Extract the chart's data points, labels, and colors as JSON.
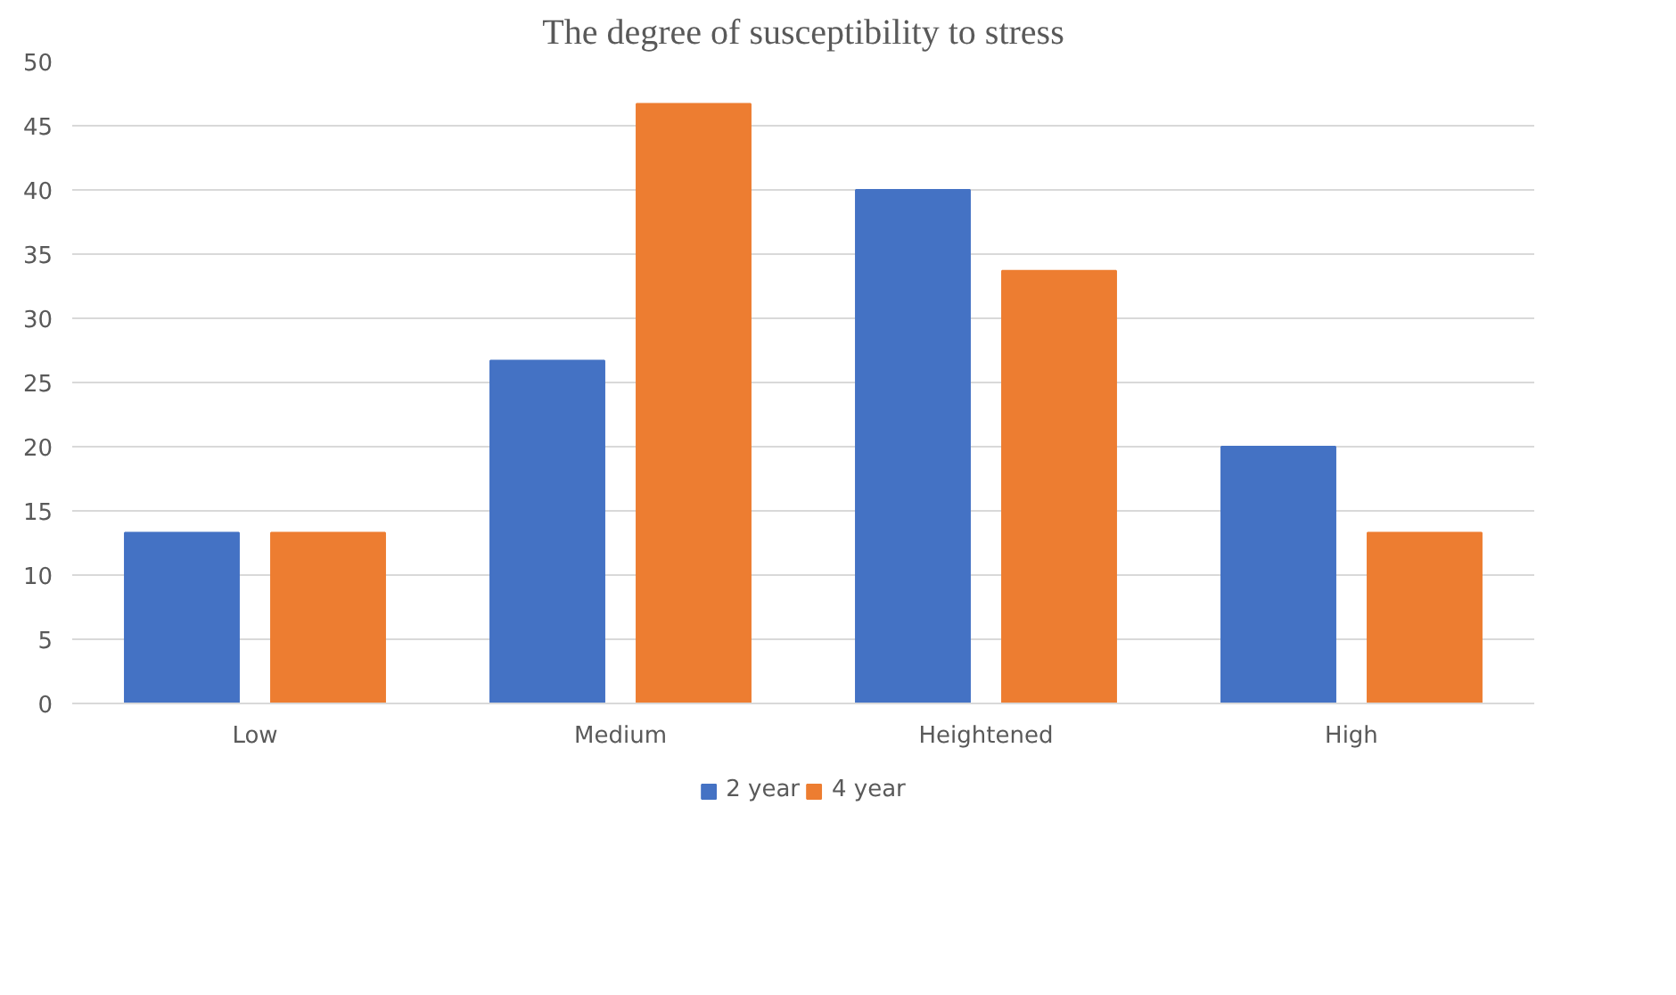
{
  "chart_data": {
    "type": "bar",
    "title": "The degree of susceptibility to stress",
    "categories": [
      "Low",
      "Medium",
      "Heightened",
      "High"
    ],
    "series": [
      {
        "name": "2 year",
        "color": "#4472c4",
        "values": [
          13.3,
          26.7,
          40,
          20
        ]
      },
      {
        "name": "4 year",
        "color": "#ed7d31",
        "values": [
          13.3,
          46.7,
          33.7,
          13.3
        ]
      }
    ],
    "ylim": [
      0,
      50
    ],
    "yticks": [
      0,
      5,
      10,
      15,
      20,
      25,
      30,
      35,
      40,
      45,
      50
    ],
    "grid": "y",
    "legend": "bottom"
  }
}
